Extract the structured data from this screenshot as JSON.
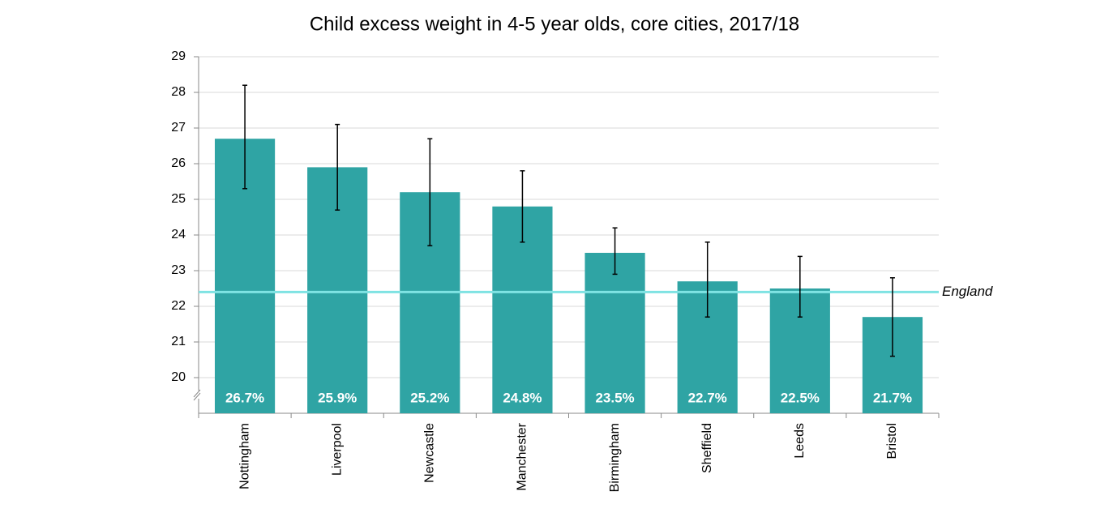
{
  "chart_data": {
    "type": "bar",
    "title": "Child excess weight in 4-5 year olds, core cities, 2017/18",
    "categories": [
      "Nottingham",
      "Liverpool",
      "Newcastle",
      "Manchester",
      "Birmingham",
      "Sheffield",
      "Leeds",
      "Bristol"
    ],
    "values": [
      26.7,
      25.9,
      25.2,
      24.8,
      23.5,
      22.7,
      22.5,
      21.7
    ],
    "value_labels": [
      "26.7%",
      "25.9%",
      "25.2%",
      "24.8%",
      "23.5%",
      "22.7%",
      "22.5%",
      "21.7%"
    ],
    "ci_lower": [
      25.3,
      24.7,
      23.7,
      23.8,
      22.9,
      21.7,
      21.7,
      20.6
    ],
    "ci_upper": [
      28.2,
      27.1,
      26.7,
      25.8,
      24.2,
      23.8,
      23.4,
      22.8
    ],
    "color": "#2fa4a4",
    "reference_line": {
      "name": "England",
      "value": 22.4,
      "color": "#7fe3e3"
    },
    "ylim": [
      19,
      29
    ],
    "yticks": [
      20,
      21,
      22,
      23,
      24,
      25,
      26,
      27,
      28,
      29
    ],
    "grid": true
  }
}
